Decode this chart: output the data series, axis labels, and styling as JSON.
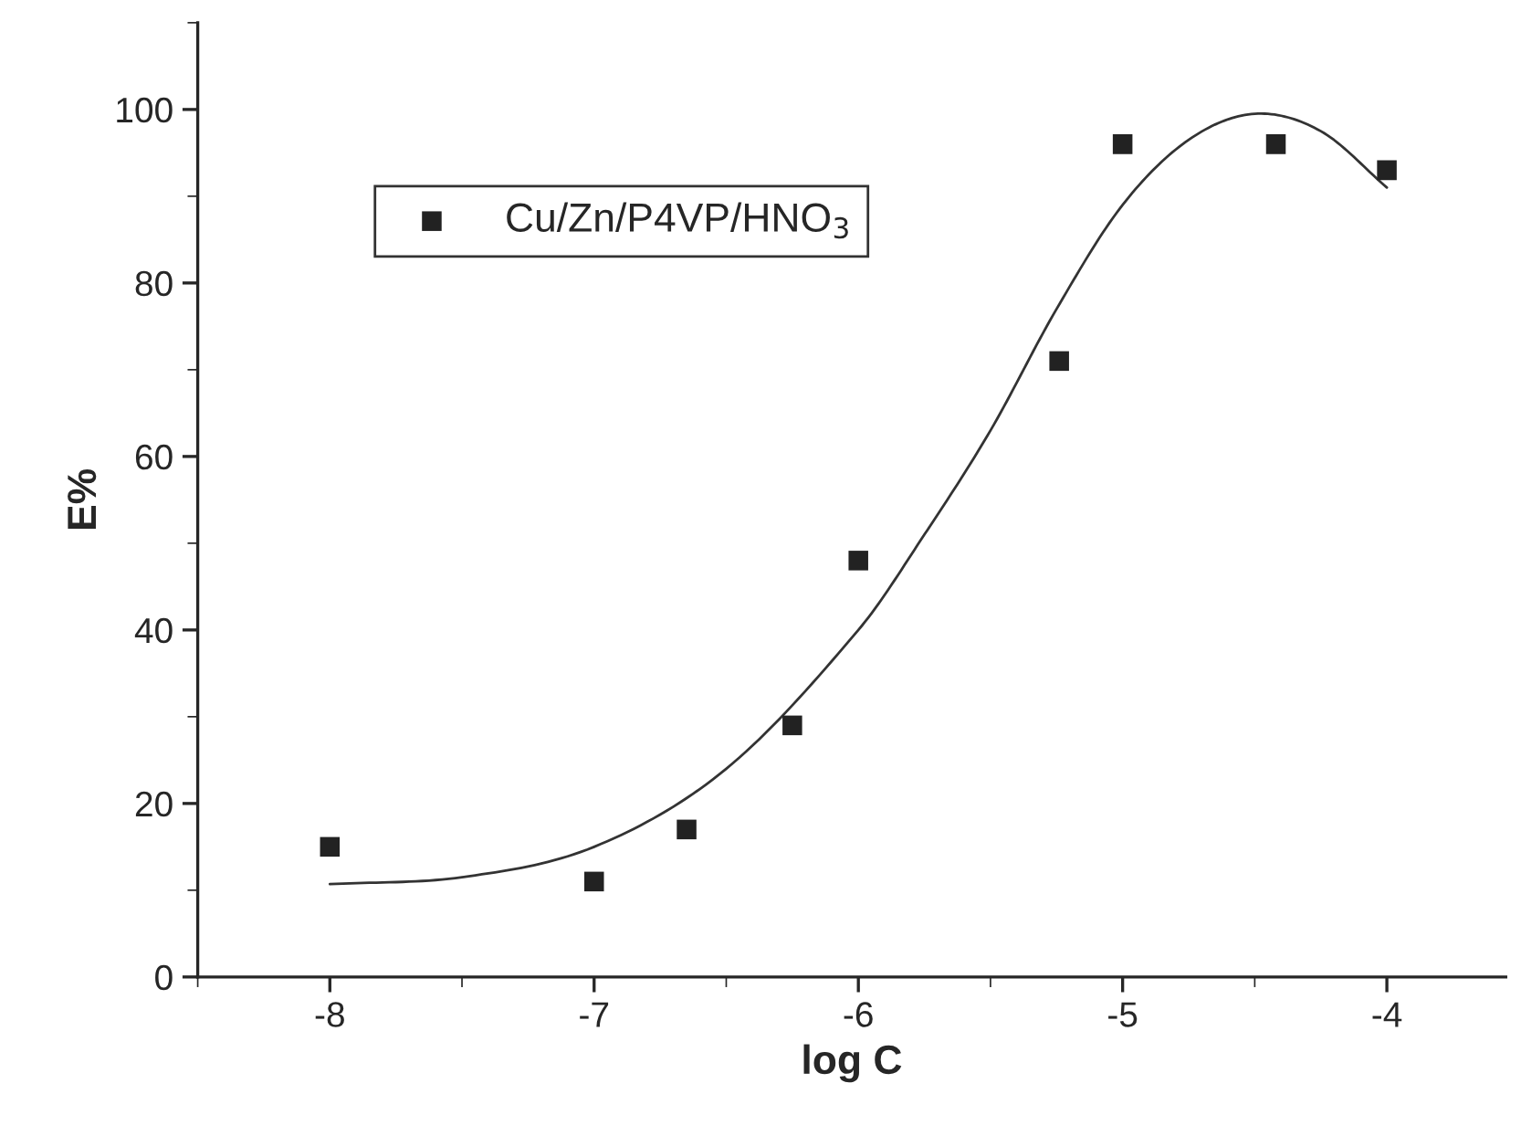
{
  "chart_data": {
    "type": "scatter",
    "xlabel": "log C",
    "ylabel": "E%",
    "xlim": [
      -8.5,
      -3.55
    ],
    "xticks": [
      -8,
      -7,
      -6,
      -5,
      -4
    ],
    "ylim": [
      0,
      110
    ],
    "yticks": [
      0,
      20,
      40,
      60,
      80,
      100
    ],
    "legend": "top left",
    "grid": false,
    "series": [
      {
        "name": "Cu/Zn/P4VP/HNO$_{3}$",
        "marker": "square",
        "color": "#222222",
        "x": [
          -8,
          -7,
          -6.65,
          -6.25,
          -6,
          -5.24,
          -5,
          -4.42,
          -4
        ],
        "values": [
          15,
          11,
          17,
          29,
          48,
          71,
          96,
          96,
          93
        ]
      },
      {
        "type": "line",
        "line_style": "solid",
        "color": "#333333",
        "x": [
          -8,
          -7.5,
          -7,
          -6.5,
          -6,
          -5.75,
          -5.5,
          -5.25,
          -5,
          -4.75,
          -4.5,
          -4.25,
          -4
        ],
        "values": [
          10.7,
          11.5,
          15,
          24,
          40,
          51,
          63,
          77,
          89,
          96.5,
          99.5,
          97.5,
          91
        ]
      }
    ]
  }
}
